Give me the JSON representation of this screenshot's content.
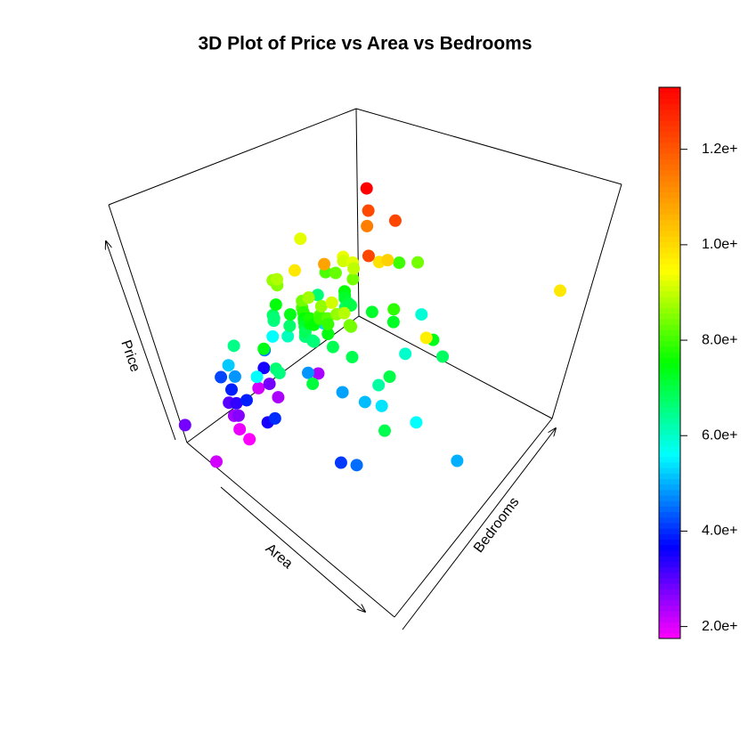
{
  "chart_data": {
    "type": "scatter3d",
    "title": "3D Plot of Price vs Area vs Bedrooms",
    "x_label": "Area",
    "y_label": "Bedrooms",
    "z_label": "Price",
    "xlim": [
      1650,
      16200
    ],
    "ylim": [
      1,
      6
    ],
    "zlim": [
      1750000,
      13300000
    ],
    "clim": [
      1750000,
      13300000
    ],
    "colormap": [
      "#ff00ff",
      "#0000ff",
      "#00ffff",
      "#00ff00",
      "#ffff00",
      "#ff8000",
      "#ff0000"
    ],
    "cticks": [
      {
        "value": 2000000,
        "label": "2.0e+"
      },
      {
        "value": 4000000,
        "label": "4.0e+"
      },
      {
        "value": 6000000,
        "label": "6.0e+"
      },
      {
        "value": 8000000,
        "label": "8.0e+"
      },
      {
        "value": 10000000,
        "label": "1.0e+"
      },
      {
        "value": 12000000,
        "label": "1.2e+"
      }
    ],
    "x": [
      7420,
      8960,
      9960,
      7500,
      7420,
      7500,
      8580,
      16200,
      8100,
      5750,
      13200,
      6000,
      6550,
      3500,
      7800,
      6000,
      6600,
      8500,
      4600,
      6420,
      4320,
      7155,
      8050,
      4560,
      8800,
      6540,
      6000,
      8875,
      7950,
      5500,
      7475,
      7000,
      4880,
      5960,
      6840,
      7000,
      7482,
      9000,
      6000,
      6550,
      6360,
      6480,
      6000,
      6000,
      6600,
      4300,
      7440,
      7440,
      6325,
      6000,
      5150,
      6000,
      6000,
      11440,
      9000,
      7680,
      6000,
      6000,
      8880,
      6240,
      6360,
      11175,
      8880,
      13200,
      7700,
      6000,
      12090,
      4000,
      6000,
      5020,
      6600,
      4040,
      4260,
      6420,
      6500,
      5960,
      6800,
      4000,
      4000,
      10500,
      9800,
      12900,
      10700,
      9620,
      8150,
      11410,
      10360,
      15600,
      8400,
      3300,
      3600,
      2500,
      3000,
      3100,
      2700,
      3240,
      2640,
      2910,
      3180,
      2800,
      3420,
      1950,
      3000,
      3649,
      2000,
      3850,
      4100,
      5400,
      6000,
      3800,
      5900,
      4500,
      3750,
      4800,
      5200
    ],
    "y": [
      4,
      4,
      3,
      4,
      4,
      3,
      4,
      5,
      4,
      3,
      3,
      4,
      4,
      4,
      3,
      4,
      4,
      3,
      3,
      3,
      3,
      3,
      3,
      3,
      3,
      4,
      3,
      3,
      5,
      4,
      3,
      3,
      4,
      3,
      5,
      3,
      3,
      4,
      3,
      3,
      3,
      3,
      4,
      3,
      3,
      3,
      3,
      3,
      3,
      4,
      3,
      3,
      2,
      4,
      4,
      4,
      4,
      3,
      2,
      4,
      4,
      3,
      3,
      2,
      3,
      3,
      4,
      3,
      4,
      3,
      2,
      3,
      4,
      3,
      3,
      3,
      2,
      3,
      2,
      3,
      4,
      3,
      3,
      3,
      3,
      2,
      2,
      3,
      5,
      2,
      2,
      2,
      3,
      2,
      3,
      2,
      2,
      3,
      2,
      2,
      3,
      3,
      2,
      2,
      1,
      1,
      2,
      2,
      2,
      4,
      3,
      4,
      3,
      3,
      2
    ],
    "z": [
      13300000,
      12250000,
      12250000,
      12215000,
      11410000,
      10850000,
      10150000,
      9800000,
      9870000,
      9800000,
      9681000,
      9310000,
      9240000,
      9240000,
      9100000,
      9100000,
      8960000,
      8890000,
      8855000,
      8750000,
      8680000,
      8645000,
      8645000,
      8540000,
      8433000,
      8400000,
      8400000,
      8400000,
      8400000,
      8295000,
      8190000,
      8120000,
      8080000,
      8043000,
      7980000,
      7962500,
      7910000,
      7875000,
      7840000,
      7700000,
      7700000,
      7560000,
      7560000,
      7525000,
      7490000,
      7455000,
      7420000,
      7420000,
      7420000,
      7350000,
      7350000,
      7350000,
      7350000,
      7343000,
      7245000,
      7210000,
      7210000,
      7140000,
      7070000,
      7035000,
      7000000,
      7000000,
      6930000,
      6930000,
      6895000,
      6860000,
      6790000,
      6790000,
      6755000,
      6720000,
      6685000,
      6650000,
      6650000,
      6629000,
      6615000,
      6615000,
      6580000,
      6510000,
      6510000,
      6300000,
      6000000,
      5600000,
      5400000,
      5100000,
      4900000,
      4500000,
      4100000,
      5000000,
      5900000,
      5200000,
      4800000,
      4200000,
      4550000,
      3900000,
      3500000,
      3300000,
      3010000,
      2800000,
      2660000,
      2450000,
      2380000,
      2100000,
      1890000,
      1750000,
      2800000,
      2100000,
      3900000,
      3500000,
      4000000,
      2400000,
      4800000,
      5300000,
      5600000,
      6100000,
      5600000
    ]
  }
}
